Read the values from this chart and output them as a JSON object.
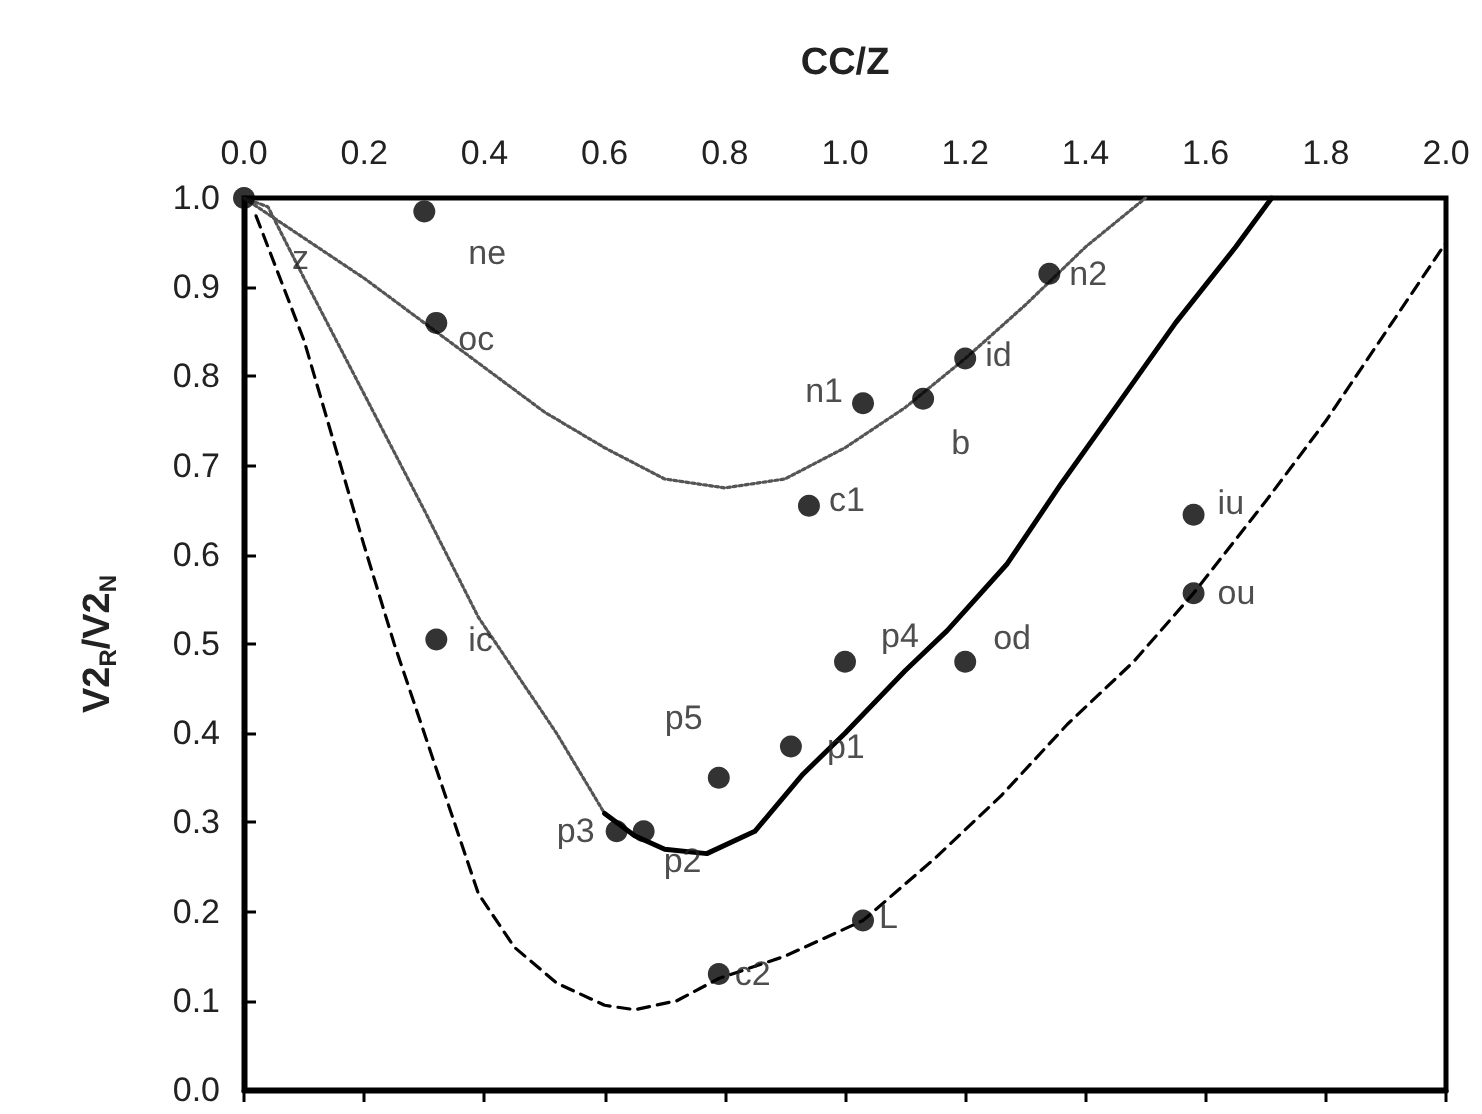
{
  "chart_data": {
    "type": "scatter",
    "xlabel": "CC/Z",
    "ylabel": "V2$_{R}$/V2$_{N}$",
    "grid": false,
    "xlim": [
      0,
      2
    ],
    "xticks": [
      {
        "value": 0,
        "label": "0.0"
      },
      {
        "value": 0.2,
        "label": "0.2"
      },
      {
        "value": 0.4,
        "label": "0.4"
      },
      {
        "value": 0.6,
        "label": "0.6"
      },
      {
        "value": 0.8,
        "label": "0.8"
      },
      {
        "value": 1,
        "label": "1.0"
      },
      {
        "value": 1.2,
        "label": "1.2"
      },
      {
        "value": 1.4,
        "label": "1.4"
      },
      {
        "value": 1.6,
        "label": "1.6"
      },
      {
        "value": 1.8,
        "label": "1.8"
      },
      {
        "value": 2,
        "label": "2.0"
      }
    ],
    "ylim": [
      0,
      1
    ],
    "yticks": [
      {
        "value": 0,
        "label": "0.0"
      },
      {
        "value": 0.1,
        "label": "0.1"
      },
      {
        "value": 0.2,
        "label": "0.2"
      },
      {
        "value": 0.3,
        "label": "0.3"
      },
      {
        "value": 0.4,
        "label": "0.4"
      },
      {
        "value": 0.5,
        "label": "0.5"
      },
      {
        "value": 0.6,
        "label": "0.6"
      },
      {
        "value": 0.7,
        "label": "0.7"
      },
      {
        "value": 0.8,
        "label": "0.8"
      },
      {
        "value": 0.9,
        "label": "0.9"
      },
      {
        "value": 1,
        "label": "1.0"
      }
    ],
    "series": [
      {
        "type": "line",
        "color": "#555555",
        "line_style": "dotted",
        "marker": "none",
        "x": [
          0,
          0.1,
          0.2,
          0.3,
          0.4,
          0.5,
          0.6,
          0.7,
          0.8,
          0.9,
          1.0,
          1.1,
          1.2,
          1.3,
          1.4,
          1.5
        ],
        "values": [
          1.0,
          0.955,
          0.91,
          0.86,
          0.81,
          0.76,
          0.72,
          0.685,
          0.675,
          0.685,
          0.72,
          0.765,
          0.82,
          0.88,
          0.945,
          1.0
        ]
      },
      {
        "type": "line",
        "color": "#555555",
        "line_style": "dotted",
        "marker": "none",
        "x": [
          0,
          0.04,
          0.1,
          0.2,
          0.3,
          0.39,
          0.45,
          0.52,
          0.6
        ],
        "values": [
          1.0,
          0.99,
          0.91,
          0.78,
          0.65,
          0.53,
          0.47,
          0.4,
          0.31
        ]
      },
      {
        "type": "line",
        "color": "#000000",
        "line_style": "solid",
        "marker": "none",
        "x": [
          0.6,
          0.65,
          0.7,
          0.77,
          0.85,
          0.93,
          1.0,
          1.1,
          1.17,
          1.27,
          1.36,
          1.45,
          1.55,
          1.65,
          1.71
        ],
        "values": [
          0.31,
          0.285,
          0.27,
          0.265,
          0.29,
          0.354,
          0.4,
          0.47,
          0.515,
          0.59,
          0.68,
          0.765,
          0.86,
          0.945,
          1.0
        ]
      },
      {
        "type": "line",
        "color": "#000000",
        "line_style": "dashed",
        "marker": "none",
        "x": [
          0.02,
          0.1,
          0.2,
          0.25,
          0.3,
          0.39,
          0.45,
          0.52,
          0.6,
          0.65,
          0.72,
          0.79,
          0.9,
          1.03,
          1.15,
          1.26,
          1.37,
          1.48,
          1.58,
          1.7,
          1.8,
          1.9,
          2.0
        ],
        "values": [
          0.98,
          0.84,
          0.61,
          0.5,
          0.4,
          0.22,
          0.16,
          0.12,
          0.095,
          0.09,
          0.1,
          0.125,
          0.15,
          0.19,
          0.26,
          0.33,
          0.41,
          0.48,
          0.557,
          0.66,
          0.75,
          0.85,
          0.95
        ]
      },
      {
        "color": "#000000",
        "marker": "circle",
        "x": [
          0,
          0.3,
          0.32,
          1.03,
          1.13,
          1.2,
          1.34,
          0.94,
          1.58,
          1.58,
          0.32,
          1.0,
          1.2,
          0.79,
          0.91,
          0.62,
          0.665,
          0.79,
          1.03
        ],
        "values": [
          1.0,
          0.985,
          0.86,
          0.77,
          0.775,
          0.82,
          0.915,
          0.655,
          0.645,
          0.557,
          0.505,
          0.48,
          0.48,
          0.35,
          0.385,
          0.29,
          0.29,
          0.13,
          0.19
        ],
        "value_labels": [
          "z",
          "ne",
          "oc",
          "n1",
          "b",
          "id",
          "n2",
          "c1",
          "iu",
          "ou",
          "ic",
          "p4",
          "od",
          "p5",
          "p1",
          "p3",
          "p2",
          "c2",
          "L"
        ]
      }
    ]
  }
}
